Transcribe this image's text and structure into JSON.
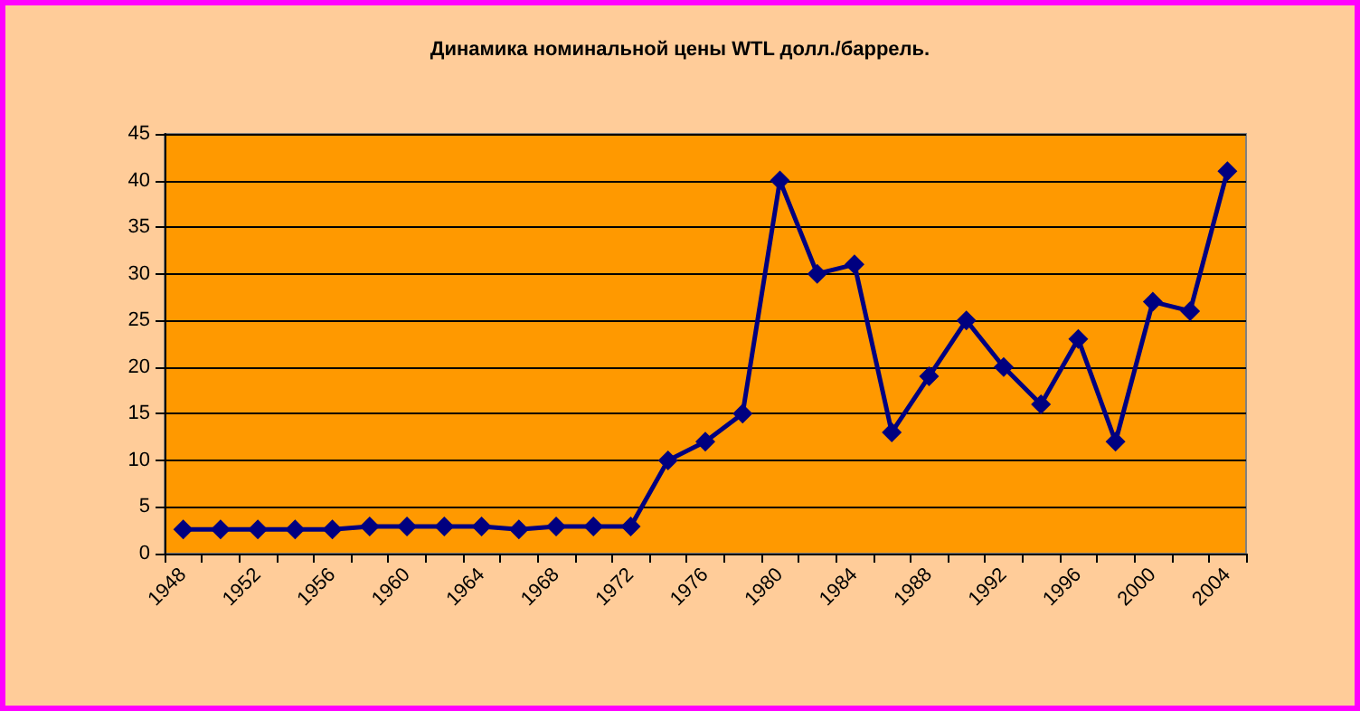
{
  "chart_data": {
    "type": "line",
    "title": "Динамика номинальной цены WTL долл./баррель.",
    "categories": [
      "1948",
      null,
      "1952",
      null,
      "1956",
      null,
      "1960",
      null,
      "1964",
      null,
      "1968",
      null,
      "1972",
      null,
      "1976",
      null,
      "1980",
      null,
      "1984",
      null,
      "1988",
      null,
      "1992",
      null,
      "1996",
      null,
      "2000",
      null,
      "2004"
    ],
    "series": [
      {
        "color": "#000080",
        "values": [
          2.6,
          2.6,
          2.6,
          2.6,
          2.6,
          2.9,
          2.9,
          2.9,
          2.9,
          2.6,
          2.9,
          2.9,
          2.9,
          10,
          12,
          15,
          40,
          30,
          31,
          13,
          19,
          25,
          20,
          16,
          23,
          12,
          27,
          26,
          41
        ]
      }
    ],
    "ylim": [
      0,
      45
    ],
    "yticks": [
      0,
      5,
      10,
      15,
      20,
      25,
      30,
      35,
      40,
      45
    ],
    "grid": "y",
    "marker": "diamond",
    "line_style": "solid"
  }
}
